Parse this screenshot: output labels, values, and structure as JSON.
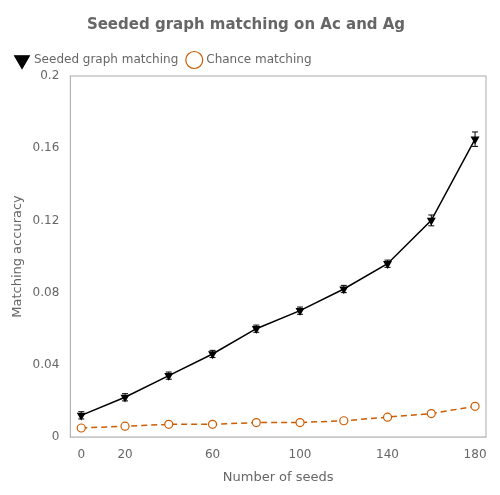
{
  "chart_data": {
    "type": "line",
    "title": "Seeded graph matching on Ac and Ag",
    "xlabel": "Number of seeds",
    "ylabel": "Matching accuracy",
    "x": [
      0,
      20,
      40,
      60,
      80,
      100,
      120,
      140,
      160,
      180
    ],
    "series": [
      {
        "name": "Seeded graph matching",
        "color": "#000000",
        "marker": "triangle_down",
        "line_style": "solid",
        "values": [
          0.012,
          0.022,
          0.034,
          0.046,
          0.06,
          0.07,
          0.082,
          0.096,
          0.12,
          0.165
        ],
        "yerr": [
          0.002,
          0.002,
          0.002,
          0.002,
          0.002,
          0.002,
          0.002,
          0.002,
          0.003,
          0.004
        ]
      },
      {
        "name": "Chance matching",
        "color": "#cd5c00",
        "marker": "open_circle",
        "line_style": "dashed",
        "values": [
          0.005,
          0.006,
          0.007,
          0.007,
          0.008,
          0.008,
          0.009,
          0.011,
          0.013,
          0.017
        ]
      }
    ],
    "xlim": [
      -5,
      185
    ],
    "xticks": [
      0,
      20,
      60,
      100,
      140,
      180
    ],
    "ylim": [
      0.0,
      0.2
    ],
    "yticks": [
      0,
      0.04,
      0.08,
      0.12,
      0.16,
      0.2
    ],
    "grid": false,
    "legend": "upper left"
  }
}
